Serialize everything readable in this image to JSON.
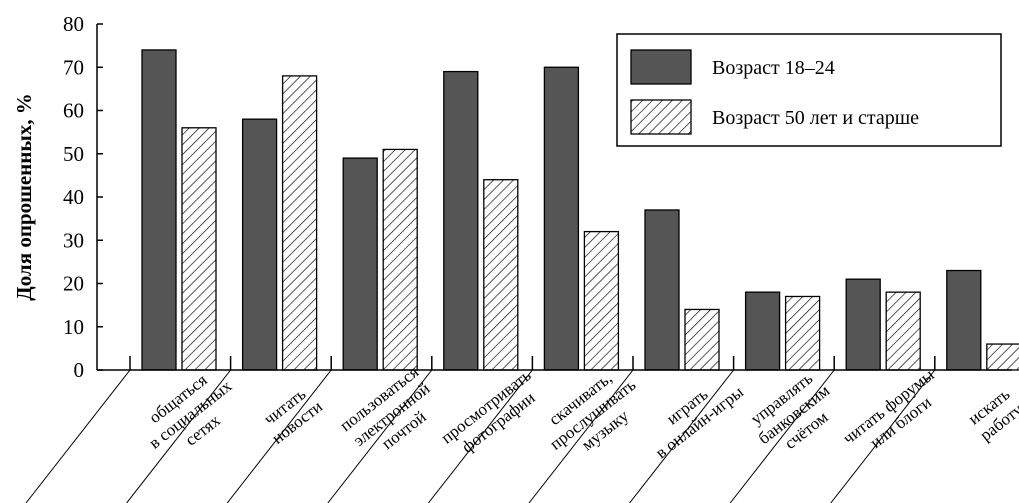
{
  "chart_data": {
    "type": "bar",
    "ylabel": "Доля опрошенных, %",
    "ylim": [
      0,
      80
    ],
    "yticks": [
      0,
      10,
      20,
      30,
      40,
      50,
      60,
      70,
      80
    ],
    "grid": false,
    "legend_position": "top-right",
    "categories": [
      [
        "общаться",
        "в социальных",
        "сетях"
      ],
      [
        "читать",
        "новости"
      ],
      [
        "пользоваться",
        "электронной",
        "почтой"
      ],
      [
        "просмотривать",
        "фотографии"
      ],
      [
        "скачивать,",
        "прослушивать",
        "музыку"
      ],
      [
        "играть",
        "в онлайн-игры"
      ],
      [
        "управлять",
        "банковским",
        "счётом"
      ],
      [
        "читать форумы",
        "или блоги"
      ],
      [
        "искать",
        "работу"
      ]
    ],
    "series": [
      {
        "name": "Возраст 18–24",
        "values": [
          74,
          58,
          49,
          69,
          70,
          37,
          18,
          21,
          23
        ],
        "fill": "#555555"
      },
      {
        "name": "Возраст 50 лет и старше",
        "values": [
          56,
          68,
          51,
          44,
          32,
          14,
          17,
          18,
          6
        ],
        "fill": "hatch"
      }
    ]
  }
}
